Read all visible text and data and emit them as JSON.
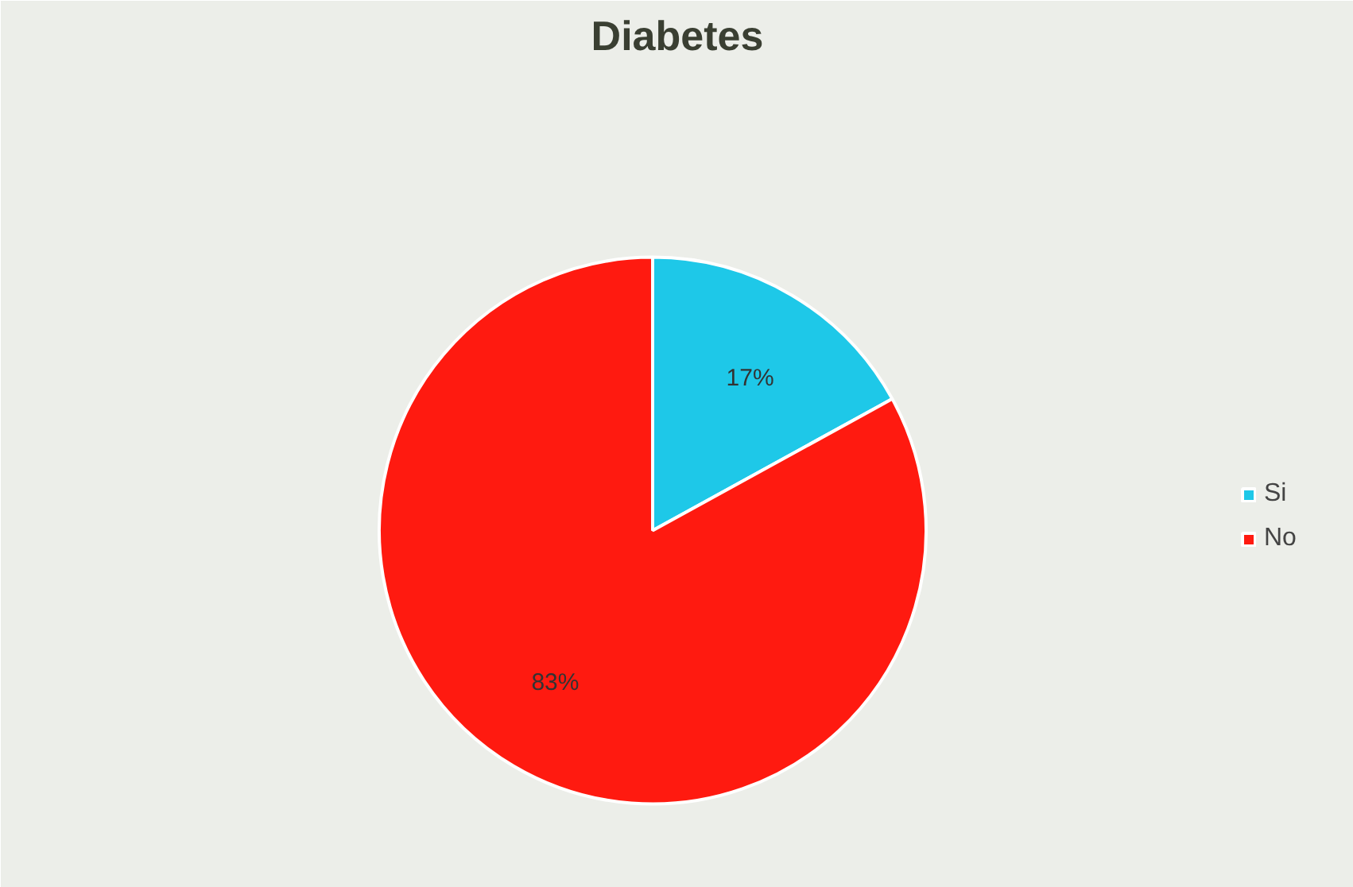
{
  "chart_data": {
    "type": "pie",
    "title": "Diabetes",
    "categories": [
      "Si",
      "No"
    ],
    "values": [
      17,
      83
    ],
    "colors": [
      "#1ec8e8",
      "#ff1a10"
    ],
    "value_labels": [
      "17%",
      "83%"
    ],
    "legend": "right"
  }
}
